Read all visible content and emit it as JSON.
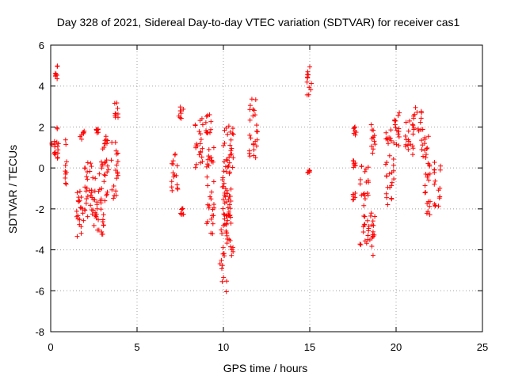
{
  "chart_data": {
    "type": "scatter",
    "title": "Day 328 of 2021, Sidereal Day-to-day VTEC variation (SDTVAR) for receiver cas1",
    "xlabel": "GPS time / hours",
    "ylabel": "SDTVAR / TECUs",
    "xlim": [
      0,
      25
    ],
    "ylim": [
      -8,
      6
    ],
    "xticks": [
      "0",
      "5",
      "10",
      "15",
      "20",
      "25"
    ],
    "yticks": [
      "-8",
      "-6",
      "-4",
      "-2",
      "0",
      "2",
      "4",
      "6"
    ],
    "grid": true,
    "marker": "+",
    "color": "#ff0000",
    "clusters": [
      {
        "x0": 0.0,
        "x1": 0.35,
        "y": [
          0.5,
          1.3
        ]
      },
      {
        "x0": 0.25,
        "x1": 0.4,
        "y": [
          4.2,
          5.1
        ]
      },
      {
        "x0": 0.3,
        "x1": 0.45,
        "y": [
          0.3,
          2.2
        ]
      },
      {
        "x0": 0.8,
        "x1": 0.95,
        "y": [
          -0.8,
          1.5
        ]
      },
      {
        "x0": 1.5,
        "x1": 1.9,
        "y": [
          -4.1,
          -1.0
        ]
      },
      {
        "x0": 1.7,
        "x1": 2.0,
        "y": [
          1.4,
          1.8
        ]
      },
      {
        "x0": 1.9,
        "x1": 2.6,
        "y": [
          -2.4,
          0.3
        ]
      },
      {
        "x0": 2.4,
        "x1": 2.8,
        "y": [
          -3.1,
          -1.0
        ]
      },
      {
        "x0": 2.6,
        "x1": 2.8,
        "y": [
          1.6,
          1.9
        ]
      },
      {
        "x0": 2.8,
        "x1": 3.4,
        "y": [
          -1.8,
          0.5
        ]
      },
      {
        "x0": 2.9,
        "x1": 3.1,
        "y": [
          -3.4,
          -2.0
        ]
      },
      {
        "x0": 3.0,
        "x1": 3.3,
        "y": [
          0.8,
          1.6
        ]
      },
      {
        "x0": 3.5,
        "x1": 3.9,
        "y": [
          -1.5,
          1.3
        ]
      },
      {
        "x0": 3.7,
        "x1": 4.0,
        "y": [
          2.4,
          3.3
        ]
      },
      {
        "x0": 7.0,
        "x1": 7.4,
        "y": [
          -1.2,
          0.8
        ]
      },
      {
        "x0": 7.4,
        "x1": 7.7,
        "y": [
          2.4,
          3.0
        ]
      },
      {
        "x0": 7.5,
        "x1": 7.7,
        "y": [
          -2.6,
          -1.9
        ]
      },
      {
        "x0": 8.3,
        "x1": 8.8,
        "y": [
          0.0,
          2.5
        ]
      },
      {
        "x0": 8.8,
        "x1": 9.3,
        "y": [
          1.7,
          2.8
        ]
      },
      {
        "x0": 9.0,
        "x1": 9.5,
        "y": [
          -3.3,
          1.0
        ]
      },
      {
        "x0": 9.8,
        "x1": 10.2,
        "y": [
          -6.1,
          -1.5
        ]
      },
      {
        "x0": 9.9,
        "x1": 10.4,
        "y": [
          -2.5,
          0.5
        ]
      },
      {
        "x0": 10.0,
        "x1": 10.6,
        "y": [
          0.0,
          2.3
        ]
      },
      {
        "x0": 10.2,
        "x1": 10.6,
        "y": [
          -4.5,
          -0.8
        ]
      },
      {
        "x0": 11.5,
        "x1": 12.0,
        "y": [
          0.5,
          3.7
        ]
      },
      {
        "x0": 14.8,
        "x1": 15.1,
        "y": [
          3.5,
          5.1
        ]
      },
      {
        "x0": 14.85,
        "x1": 15.0,
        "y": [
          -0.25,
          -0.1
        ]
      },
      {
        "x0": 17.5,
        "x1": 17.7,
        "y": [
          1.6,
          2.1
        ]
      },
      {
        "x0": 17.5,
        "x1": 17.7,
        "y": [
          -1.6,
          -1.2
        ]
      },
      {
        "x0": 17.5,
        "x1": 17.7,
        "y": [
          0.0,
          0.4
        ]
      },
      {
        "x0": 17.9,
        "x1": 18.4,
        "y": [
          -3.9,
          0.2
        ]
      },
      {
        "x0": 18.4,
        "x1": 18.8,
        "y": [
          -4.4,
          -2.0
        ]
      },
      {
        "x0": 18.5,
        "x1": 18.8,
        "y": [
          0.6,
          2.2
        ]
      },
      {
        "x0": 19.4,
        "x1": 19.9,
        "y": [
          -1.8,
          2.0
        ]
      },
      {
        "x0": 19.8,
        "x1": 20.2,
        "y": [
          1.0,
          2.8
        ]
      },
      {
        "x0": 20.5,
        "x1": 21.0,
        "y": [
          0.5,
          2.5
        ]
      },
      {
        "x0": 21.0,
        "x1": 21.5,
        "y": [
          1.8,
          3.0
        ]
      },
      {
        "x0": 21.4,
        "x1": 21.9,
        "y": [
          0.5,
          2.0
        ]
      },
      {
        "x0": 21.6,
        "x1": 22.0,
        "y": [
          -2.3,
          0.3
        ]
      },
      {
        "x0": 22.2,
        "x1": 22.6,
        "y": [
          -1.9,
          0.4
        ]
      }
    ]
  }
}
